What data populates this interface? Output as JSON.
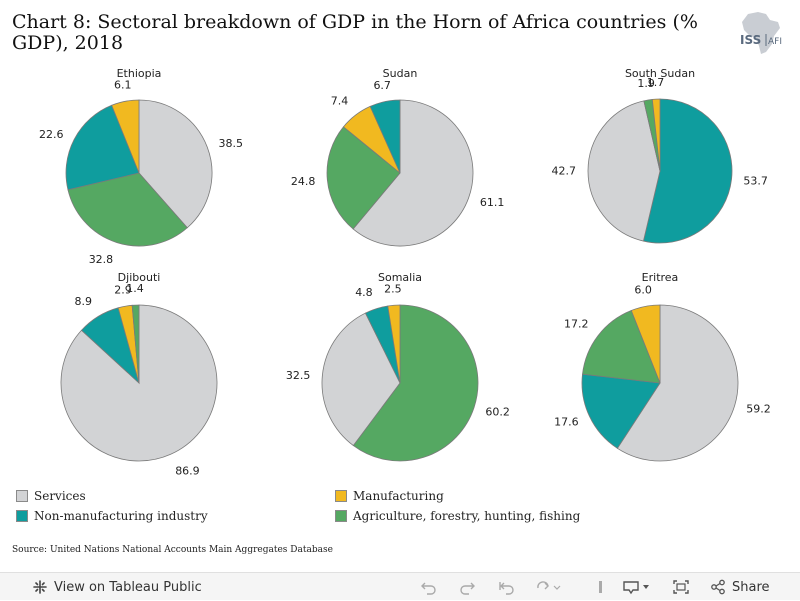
{
  "page": {
    "title": "Chart 8: Sectoral breakdown of GDP in the Horn of Africa countries (% GDP), 2018",
    "source": "Source: United Nations National Accounts Main Aggregates Database"
  },
  "logo": {
    "icon": "africa-map-icon",
    "text": "ISS",
    "subtext": "AFI"
  },
  "legend": [
    {
      "name": "Services",
      "color": "#d2d3d5"
    },
    {
      "name": "Non-manufacturing industry",
      "color": "#0f9d9e"
    },
    {
      "name": "Manufacturing",
      "color": "#f1b920"
    },
    {
      "name": "Agriculture, forestry, hunting, fishing",
      "color": "#55a862"
    }
  ],
  "chart_data": [
    {
      "type": "pie",
      "title": "Ethiopia",
      "slices": [
        {
          "name": "Services",
          "value": 38.5,
          "color": "#d2d3d5"
        },
        {
          "name": "Agriculture, forestry, hunting, fishing",
          "value": 32.8,
          "color": "#55a862"
        },
        {
          "name": "Non-manufacturing industry",
          "value": 22.6,
          "color": "#0f9d9e"
        },
        {
          "name": "Manufacturing",
          "value": 6.1,
          "color": "#f1b920"
        }
      ]
    },
    {
      "type": "pie",
      "title": "Sudan",
      "slices": [
        {
          "name": "Services",
          "value": 61.1,
          "color": "#d2d3d5"
        },
        {
          "name": "Agriculture, forestry, hunting, fishing",
          "value": 24.8,
          "color": "#55a862"
        },
        {
          "name": "Manufacturing",
          "value": 7.4,
          "color": "#f1b920"
        },
        {
          "name": "Non-manufacturing industry",
          "value": 6.7,
          "color": "#0f9d9e"
        }
      ]
    },
    {
      "type": "pie",
      "title": "South Sudan",
      "slices": [
        {
          "name": "Non-manufacturing industry",
          "value": 53.7,
          "color": "#0f9d9e"
        },
        {
          "name": "Services",
          "value": 42.7,
          "color": "#d2d3d5"
        },
        {
          "name": "Agriculture, forestry, hunting, fishing",
          "value": 1.9,
          "color": "#55a862"
        },
        {
          "name": "Manufacturing",
          "value": 1.7,
          "color": "#f1b920"
        }
      ]
    },
    {
      "type": "pie",
      "title": "Djibouti",
      "slices": [
        {
          "name": "Services",
          "value": 86.9,
          "color": "#d2d3d5"
        },
        {
          "name": "Non-manufacturing industry",
          "value": 8.9,
          "color": "#0f9d9e"
        },
        {
          "name": "Manufacturing",
          "value": 2.9,
          "color": "#f1b920"
        },
        {
          "name": "Agriculture, forestry, hunting, fishing",
          "value": 1.4,
          "color": "#55a862"
        }
      ]
    },
    {
      "type": "pie",
      "title": "Somalia",
      "slices": [
        {
          "name": "Agriculture, forestry, hunting, fishing",
          "value": 60.2,
          "color": "#55a862"
        },
        {
          "name": "Services",
          "value": 32.5,
          "color": "#d2d3d5"
        },
        {
          "name": "Non-manufacturing industry",
          "value": 4.8,
          "color": "#0f9d9e"
        },
        {
          "name": "Manufacturing",
          "value": 2.5,
          "color": "#f1b920"
        }
      ]
    },
    {
      "type": "pie",
      "title": "Eritrea",
      "slices": [
        {
          "name": "Services",
          "value": 59.2,
          "color": "#d2d3d5"
        },
        {
          "name": "Non-manufacturing industry",
          "value": 17.6,
          "color": "#0f9d9e"
        },
        {
          "name": "Agriculture, forestry, hunting, fishing",
          "value": 17.2,
          "color": "#55a862"
        },
        {
          "name": "Manufacturing",
          "value": 6.0,
          "color": "#f1b920"
        }
      ]
    }
  ],
  "toolbar": {
    "view_label": "View on Tableau Public",
    "share_label": "Share",
    "icons": [
      "tableau-logo-icon",
      "undo-icon",
      "redo-icon",
      "revert-icon",
      "refresh-icon",
      "pause-icon",
      "download-icon",
      "fullscreen-icon",
      "share-icon"
    ]
  }
}
